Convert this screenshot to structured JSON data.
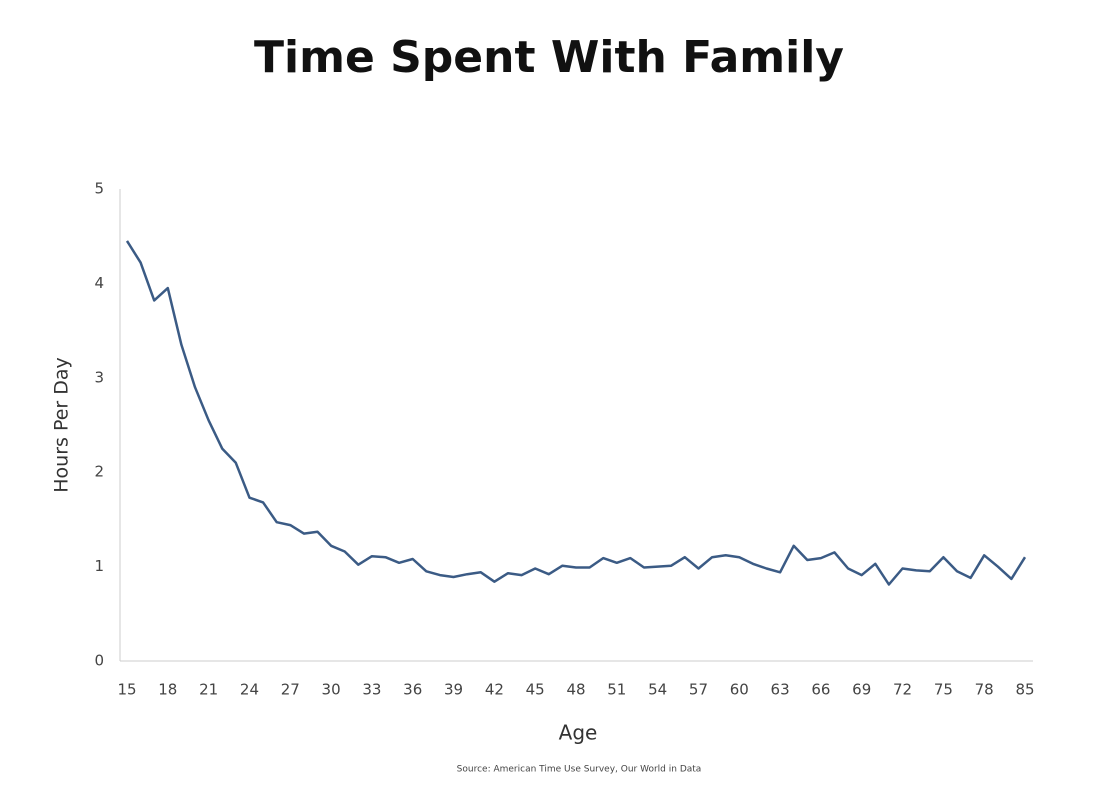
{
  "chart_data": {
    "type": "line",
    "title": "Time Spent With Family",
    "x_label": "Age",
    "y_label": "Hours Per Day",
    "source": "Source: American Time Use Survey, Our World in Data",
    "categories": [
      15,
      null,
      null,
      18,
      null,
      null,
      21,
      null,
      null,
      24,
      null,
      null,
      27,
      null,
      null,
      30,
      null,
      null,
      33,
      null,
      null,
      36,
      null,
      null,
      39,
      null,
      null,
      42,
      null,
      null,
      45,
      null,
      null,
      48,
      null,
      null,
      51,
      null,
      null,
      54,
      null,
      null,
      57,
      null,
      null,
      60,
      null,
      null,
      63,
      null,
      null,
      66,
      null,
      null,
      69,
      null,
      null,
      72,
      null,
      null,
      75,
      null,
      null,
      78,
      null,
      null,
      85
    ],
    "series": [
      {
        "name": "Hours Per Day",
        "color": "#3b5b85",
        "values": [
          4.45,
          4.22,
          3.82,
          3.95,
          3.35,
          2.9,
          2.55,
          2.25,
          2.1,
          1.73,
          1.68,
          1.47,
          1.44,
          1.35,
          1.37,
          1.22,
          1.16,
          1.02,
          1.11,
          1.1,
          1.04,
          1.08,
          0.95,
          0.91,
          0.89,
          0.92,
          0.94,
          0.84,
          0.93,
          0.91,
          0.98,
          0.92,
          1.01,
          0.99,
          0.99,
          1.09,
          1.04,
          1.09,
          0.99,
          1.0,
          1.01,
          1.1,
          0.98,
          1.1,
          1.12,
          1.1,
          1.03,
          0.98,
          0.94,
          1.22,
          1.07,
          1.09,
          1.15,
          0.98,
          0.91,
          1.03,
          0.81,
          0.98,
          0.96,
          0.95,
          1.1,
          0.95,
          0.88,
          1.12,
          1.0,
          0.87,
          1.1
        ]
      }
    ],
    "ylim": [
      0,
      5
    ],
    "yticks": [
      0,
      1,
      2,
      3,
      4,
      5
    ],
    "grid": false
  }
}
